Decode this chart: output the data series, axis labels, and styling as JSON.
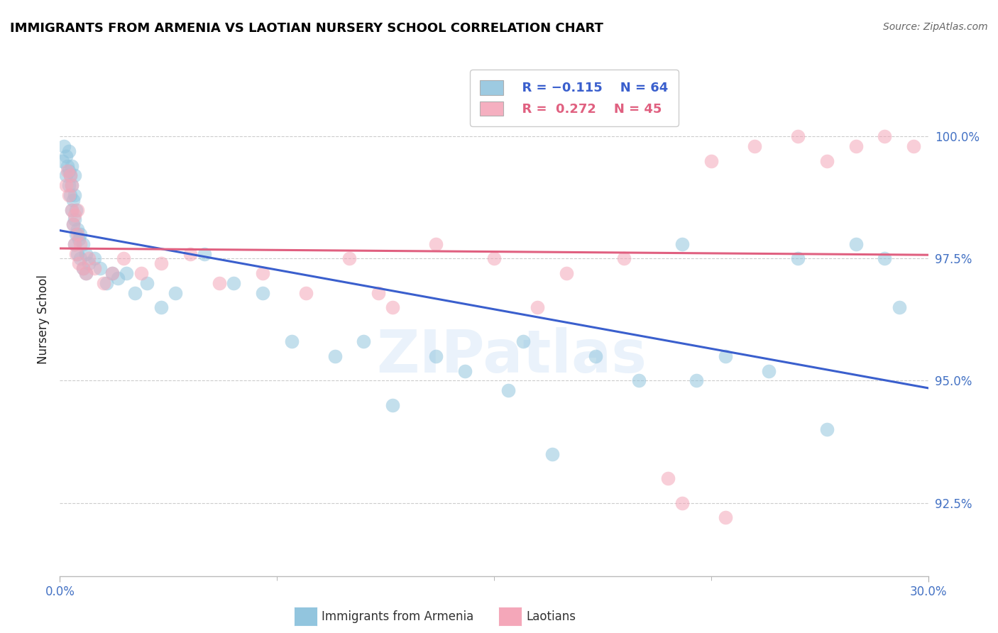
{
  "title": "IMMIGRANTS FROM ARMENIA VS LAOTIAN NURSERY SCHOOL CORRELATION CHART",
  "source": "Source: ZipAtlas.com",
  "ylabel": "Nursery School",
  "xlim": [
    0.0,
    30.0
  ],
  "ylim": [
    91.0,
    101.5
  ],
  "ytick_vals": [
    92.5,
    95.0,
    97.5,
    100.0
  ],
  "legend_blue_label": "Immigrants from Armenia",
  "legend_pink_label": "Laotians",
  "legend_blue_r": "R = −0.115",
  "legend_blue_n": "N = 64",
  "legend_pink_r": "R =  0.272",
  "legend_pink_n": "N = 45",
  "blue_color": "#92C5DE",
  "pink_color": "#F4A7B9",
  "blue_line_color": "#3A5FCD",
  "pink_line_color": "#E06080",
  "blue_x": [
    0.1,
    0.15,
    0.2,
    0.2,
    0.25,
    0.3,
    0.3,
    0.3,
    0.35,
    0.35,
    0.4,
    0.4,
    0.4,
    0.45,
    0.45,
    0.5,
    0.5,
    0.5,
    0.5,
    0.55,
    0.55,
    0.6,
    0.6,
    0.65,
    0.7,
    0.7,
    0.8,
    0.8,
    0.9,
    0.9,
    1.0,
    1.2,
    1.4,
    1.6,
    1.8,
    2.0,
    2.3,
    2.6,
    3.0,
    3.5,
    4.0,
    5.0,
    6.0,
    7.0,
    8.0,
    9.5,
    10.5,
    11.5,
    13.0,
    14.0,
    16.0,
    17.0,
    18.5,
    20.0,
    21.5,
    23.0,
    24.5,
    25.5,
    26.5,
    27.5,
    28.5,
    29.0,
    15.5,
    22.0
  ],
  "blue_y": [
    99.5,
    99.8,
    99.2,
    99.6,
    99.4,
    99.0,
    99.3,
    99.7,
    98.8,
    99.2,
    98.5,
    99.0,
    99.4,
    98.2,
    98.7,
    97.8,
    98.3,
    98.8,
    99.2,
    98.0,
    98.5,
    97.6,
    98.1,
    97.9,
    97.5,
    98.0,
    97.3,
    97.8,
    97.2,
    97.6,
    97.4,
    97.5,
    97.3,
    97.0,
    97.2,
    97.1,
    97.2,
    96.8,
    97.0,
    96.5,
    96.8,
    97.6,
    97.0,
    96.8,
    95.8,
    95.5,
    95.8,
    94.5,
    95.5,
    95.2,
    95.8,
    93.5,
    95.5,
    95.0,
    97.8,
    95.5,
    95.2,
    97.5,
    94.0,
    97.8,
    97.5,
    96.5,
    94.8,
    95.0
  ],
  "pink_x": [
    0.2,
    0.25,
    0.3,
    0.35,
    0.4,
    0.4,
    0.45,
    0.5,
    0.5,
    0.55,
    0.6,
    0.6,
    0.65,
    0.7,
    0.8,
    0.9,
    1.0,
    1.2,
    1.5,
    1.8,
    2.2,
    2.8,
    3.5,
    4.5,
    5.5,
    7.0,
    8.5,
    10.0,
    11.5,
    13.0,
    15.0,
    17.5,
    19.5,
    21.0,
    21.5,
    22.5,
    23.0,
    24.0,
    25.5,
    26.5,
    27.5,
    28.5,
    29.5,
    11.0,
    16.5
  ],
  "pink_y": [
    99.0,
    99.3,
    98.8,
    99.2,
    98.5,
    99.0,
    98.2,
    97.8,
    98.4,
    97.6,
    98.0,
    98.5,
    97.4,
    97.8,
    97.3,
    97.2,
    97.5,
    97.3,
    97.0,
    97.2,
    97.5,
    97.2,
    97.4,
    97.6,
    97.0,
    97.2,
    96.8,
    97.5,
    96.5,
    97.8,
    97.5,
    97.2,
    97.5,
    93.0,
    92.5,
    99.5,
    92.2,
    99.8,
    100.0,
    99.5,
    99.8,
    100.0,
    99.8,
    96.8,
    96.5
  ]
}
